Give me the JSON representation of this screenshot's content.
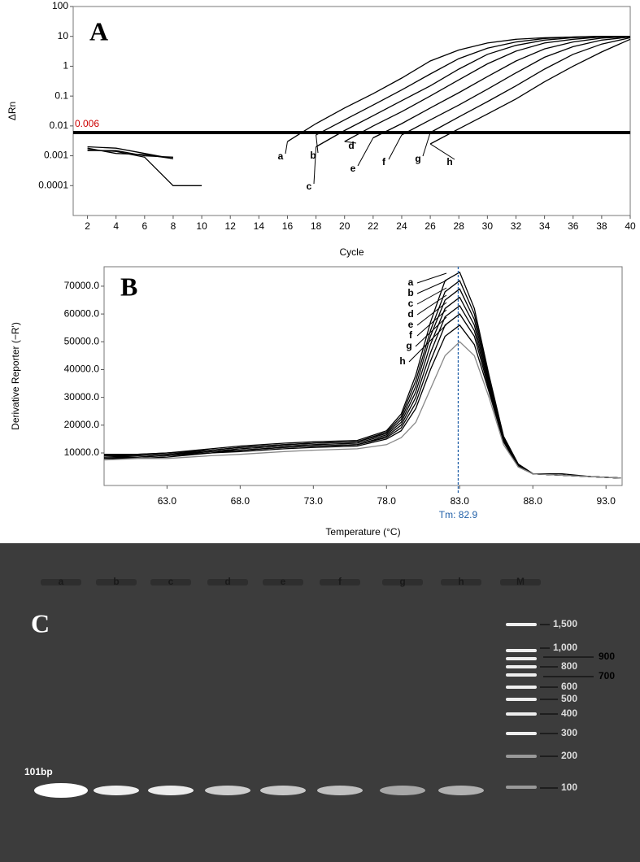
{
  "chart_data": [
    {
      "type": "line",
      "panel": "A",
      "ylabel": "ΔRn",
      "xlabel": "Cycle",
      "log_y": true,
      "xlim": [
        1,
        40
      ],
      "ylim": [
        1e-05,
        100
      ],
      "xticks": [
        2,
        4,
        6,
        8,
        10,
        12,
        14,
        16,
        18,
        20,
        22,
        24,
        26,
        28,
        30,
        32,
        34,
        36,
        38,
        40
      ],
      "yticks": [
        0.0001,
        0.001,
        0.01,
        0.1,
        1,
        10,
        100
      ],
      "threshold": 0.006,
      "threshold_color": "#cc0000",
      "x": [
        2,
        4,
        6,
        8,
        10,
        12,
        14,
        16,
        18,
        20,
        22,
        24,
        26,
        28,
        30,
        32,
        34,
        36,
        38,
        40
      ],
      "series": [
        {
          "name": "a",
          "color": "#000000",
          "values": [
            0.002,
            0.0018,
            0.0012,
            0.0008,
            null,
            null,
            null,
            0.003,
            0.012,
            0.04,
            0.12,
            0.4,
            1.5,
            3.5,
            6,
            8,
            9,
            9.5,
            10,
            10
          ]
        },
        {
          "name": "b",
          "color": "#000000",
          "values": [
            0.0015,
            0.0015,
            0.001,
            0.0009,
            null,
            null,
            null,
            null,
            0.005,
            0.016,
            0.05,
            0.16,
            0.55,
            1.8,
            4,
            6.5,
            8.5,
            9.5,
            10,
            10
          ]
        },
        {
          "name": "c",
          "color": "#000000",
          "values": [
            0.0018,
            0.0012,
            0.0011,
            0.0008,
            null,
            null,
            null,
            null,
            0.002,
            0.007,
            0.022,
            0.07,
            0.22,
            0.8,
            2.5,
            5,
            7.5,
            9,
            9.8,
            10
          ]
        },
        {
          "name": "d",
          "color": "#000000",
          "values": [
            0.0016,
            0.0014,
            0.0009,
            0.0001,
            0.0001,
            null,
            null,
            null,
            null,
            0.003,
            0.01,
            0.03,
            0.1,
            0.35,
            1.2,
            3.2,
            6,
            8,
            9.5,
            10
          ]
        },
        {
          "name": "e",
          "color": "#000000",
          "values": [
            null,
            null,
            null,
            null,
            null,
            null,
            null,
            null,
            null,
            null,
            0.004,
            0.012,
            0.04,
            0.13,
            0.45,
            1.5,
            3.8,
            6.5,
            8.8,
            9.8
          ]
        },
        {
          "name": "f",
          "color": "#000000",
          "values": [
            null,
            null,
            null,
            null,
            null,
            null,
            null,
            null,
            null,
            null,
            null,
            0.005,
            0.016,
            0.05,
            0.17,
            0.6,
            2,
            4.5,
            7.5,
            9.5
          ]
        },
        {
          "name": "g",
          "color": "#000000",
          "values": [
            null,
            null,
            null,
            null,
            null,
            null,
            null,
            null,
            null,
            null,
            null,
            null,
            0.006,
            0.02,
            0.065,
            0.22,
            0.8,
            2.5,
            5.5,
            9
          ]
        },
        {
          "name": "h",
          "color": "#000000",
          "values": [
            null,
            null,
            null,
            null,
            null,
            null,
            null,
            null,
            null,
            null,
            null,
            null,
            0.0025,
            0.008,
            0.025,
            0.08,
            0.3,
            1,
            3,
            8
          ]
        }
      ]
    },
    {
      "type": "line",
      "panel": "B",
      "ylabel": "Derivative Reporter (−R')",
      "xlabel": "Temperature (°C)",
      "log_y": false,
      "xlim": [
        58.7,
        94.1
      ],
      "ylim": [
        -1700,
        77000
      ],
      "xticks": [
        {
          "value": 63,
          "label": "63.0"
        },
        {
          "value": 68,
          "label": "68.0"
        },
        {
          "value": 73,
          "label": "73.0"
        },
        {
          "value": 78,
          "label": "78.0"
        },
        {
          "value": 83,
          "label": "83.0"
        },
        {
          "value": 88,
          "label": "88.0"
        },
        {
          "value": 93,
          "label": "93.0"
        }
      ],
      "yticks": [
        {
          "value": 10000,
          "label": "10000.0"
        },
        {
          "value": 20000,
          "label": "20000.0"
        },
        {
          "value": 30000,
          "label": "30000.0"
        },
        {
          "value": 40000,
          "label": "40000.0"
        },
        {
          "value": 50000,
          "label": "50000.0"
        },
        {
          "value": 60000,
          "label": "60000.0"
        },
        {
          "value": 70000,
          "label": "70000.0"
        }
      ],
      "tm": {
        "value": 82.9,
        "label": "Tm: 82.9",
        "color": "#1f5fa8"
      },
      "x": [
        58.7,
        61,
        63,
        66,
        68,
        71,
        73,
        76,
        78,
        79,
        80,
        81,
        82,
        83,
        84,
        85,
        86,
        87,
        88,
        90,
        92,
        94
      ],
      "series": [
        {
          "name": "a",
          "color": "#000000",
          "values": [
            9000,
            9500,
            10000,
            11500,
            12500,
            13500,
            14000,
            14500,
            18000,
            24000,
            38000,
            57000,
            72000,
            75000,
            62000,
            38000,
            16000,
            6000,
            2500,
            2500,
            1500,
            1000
          ]
        },
        {
          "name": "b",
          "color": "#000000",
          "values": [
            9500,
            9500,
            10000,
            11000,
            12000,
            13000,
            13500,
            14000,
            17500,
            23000,
            36000,
            54000,
            68000,
            72000,
            60000,
            37000,
            16000,
            6000,
            2500,
            2000,
            1500,
            1000
          ]
        },
        {
          "name": "c",
          "color": "#000000",
          "values": [
            9000,
            9000,
            9500,
            11000,
            12000,
            13000,
            13500,
            14000,
            17000,
            22000,
            34000,
            52000,
            65000,
            69000,
            58000,
            36000,
            15500,
            6000,
            2500,
            2000,
            1500,
            1000
          ]
        },
        {
          "name": "d",
          "color": "#000000",
          "values": [
            8500,
            9000,
            9500,
            10500,
            11500,
            12500,
            13000,
            13500,
            16500,
            21000,
            32000,
            49000,
            62000,
            66000,
            56000,
            35000,
            15000,
            5500,
            2500,
            2000,
            1500,
            1000
          ]
        },
        {
          "name": "e",
          "color": "#000000",
          "values": [
            8500,
            8500,
            9000,
            10500,
            11000,
            12000,
            12500,
            13000,
            16000,
            20000,
            30000,
            46000,
            59000,
            63000,
            54000,
            34000,
            15000,
            5500,
            2500,
            2000,
            1500,
            1000
          ]
        },
        {
          "name": "f",
          "color": "#000000",
          "values": [
            8000,
            8500,
            9000,
            10000,
            11000,
            12000,
            12500,
            13000,
            15500,
            19000,
            28000,
            43000,
            56000,
            60000,
            52000,
            33000,
            14500,
            5500,
            2500,
            2000,
            1500,
            1000
          ]
        },
        {
          "name": "g",
          "color": "#000000",
          "values": [
            8000,
            8000,
            8500,
            10000,
            10500,
            11500,
            12000,
            12500,
            15000,
            18000,
            26000,
            40000,
            52000,
            56000,
            49000,
            32000,
            14000,
            5000,
            2500,
            2000,
            1500,
            1000
          ]
        },
        {
          "name": "h",
          "color": "#888888",
          "values": [
            7500,
            8000,
            8000,
            9000,
            9500,
            10500,
            11000,
            11500,
            13000,
            15500,
            21000,
            33000,
            45000,
            50000,
            45000,
            30000,
            13000,
            5000,
            2500,
            2000,
            1500,
            1000
          ]
        }
      ]
    }
  ],
  "gel": {
    "panel": "C",
    "lanes": [
      "a",
      "b",
      "c",
      "d",
      "e",
      "f",
      "g",
      "h",
      "M"
    ],
    "band_label": "101bp",
    "ladder": [
      "1,500",
      "1,000",
      "900",
      "800",
      "700",
      "600",
      "500",
      "400",
      "300",
      "200",
      "100"
    ]
  }
}
